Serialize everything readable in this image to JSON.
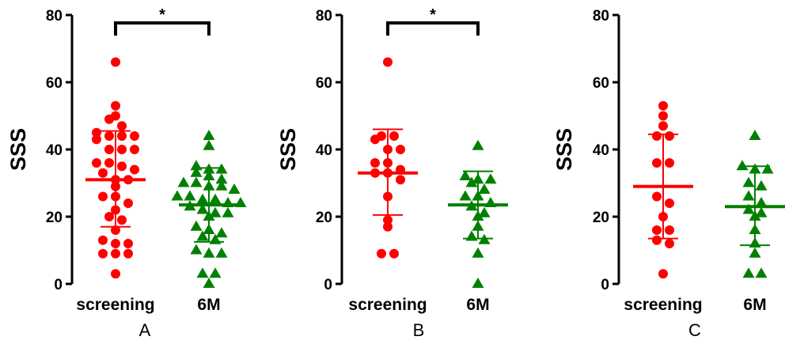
{
  "chart_data": [
    {
      "type": "scatter",
      "panel_label": "A",
      "ylabel": "SSS",
      "ylim": [
        0,
        80
      ],
      "yticks": [
        "0",
        "20",
        "40",
        "60",
        "80"
      ],
      "categories": [
        "screening",
        "6M"
      ],
      "significance": [
        {
          "between": [
            "screening",
            "6M"
          ],
          "label": "*"
        }
      ],
      "series": [
        {
          "category": "screening",
          "marker": "circle",
          "color": "#ff0000",
          "mean": 31,
          "error_upper": 45.5,
          "error_lower": 17,
          "values": [
            66,
            53,
            50,
            49,
            47,
            45,
            44,
            44,
            44,
            43,
            40,
            40,
            40,
            36,
            36,
            35,
            34,
            33,
            31,
            31,
            29,
            26,
            26,
            24,
            22,
            20,
            19,
            16,
            13,
            12,
            12,
            9,
            9,
            9,
            3
          ]
        },
        {
          "category": "6M",
          "marker": "triangle",
          "color": "#008000",
          "mean": 23.5,
          "error_upper": 34.5,
          "error_lower": 12.5,
          "values": [
            44,
            41,
            35,
            34,
            34,
            33,
            32,
            31,
            30,
            30,
            29,
            29,
            28,
            26,
            26,
            25,
            25,
            24,
            24,
            23,
            22,
            21,
            21,
            20,
            17,
            16,
            15,
            14,
            13,
            10,
            9,
            9,
            3,
            3,
            0
          ]
        }
      ]
    },
    {
      "type": "scatter",
      "panel_label": "B",
      "ylabel": "SSS",
      "ylim": [
        0,
        80
      ],
      "yticks": [
        "0",
        "20",
        "40",
        "60",
        "80"
      ],
      "categories": [
        "screening",
        "6M"
      ],
      "significance": [
        {
          "between": [
            "screening",
            "6M"
          ],
          "label": "*"
        }
      ],
      "series": [
        {
          "category": "screening",
          "marker": "circle",
          "color": "#ff0000",
          "mean": 33,
          "error_upper": 46,
          "error_lower": 20.5,
          "values": [
            66,
            44,
            44,
            43,
            40,
            40,
            36,
            36,
            34,
            33,
            33,
            31,
            26,
            19,
            17,
            9,
            9
          ]
        },
        {
          "category": "6M",
          "marker": "triangle",
          "color": "#008000",
          "mean": 23.5,
          "error_upper": 33.5,
          "error_lower": 13.5,
          "values": [
            41,
            32,
            31,
            31,
            30,
            28,
            26,
            26,
            24,
            23,
            21,
            20,
            17,
            14,
            13,
            9,
            0
          ]
        }
      ]
    },
    {
      "type": "scatter",
      "panel_label": "C",
      "ylabel": "SSS",
      "ylim": [
        0,
        80
      ],
      "yticks": [
        "0",
        "20",
        "40",
        "60",
        "80"
      ],
      "categories": [
        "screening",
        "6M"
      ],
      "significance": [],
      "series": [
        {
          "category": "screening",
          "marker": "circle",
          "color": "#ff0000",
          "mean": 29,
          "error_upper": 44.5,
          "error_lower": 13.5,
          "values": [
            53,
            50,
            47,
            44,
            44,
            36,
            36,
            26,
            24,
            20,
            16,
            16,
            13,
            12,
            3
          ]
        },
        {
          "category": "6M",
          "marker": "triangle",
          "color": "#008000",
          "mean": 23,
          "error_upper": 35,
          "error_lower": 11.5,
          "values": [
            44,
            35,
            34,
            34,
            30,
            29,
            26,
            24,
            22,
            21,
            20,
            16,
            12,
            9,
            3,
            3
          ]
        }
      ]
    }
  ]
}
